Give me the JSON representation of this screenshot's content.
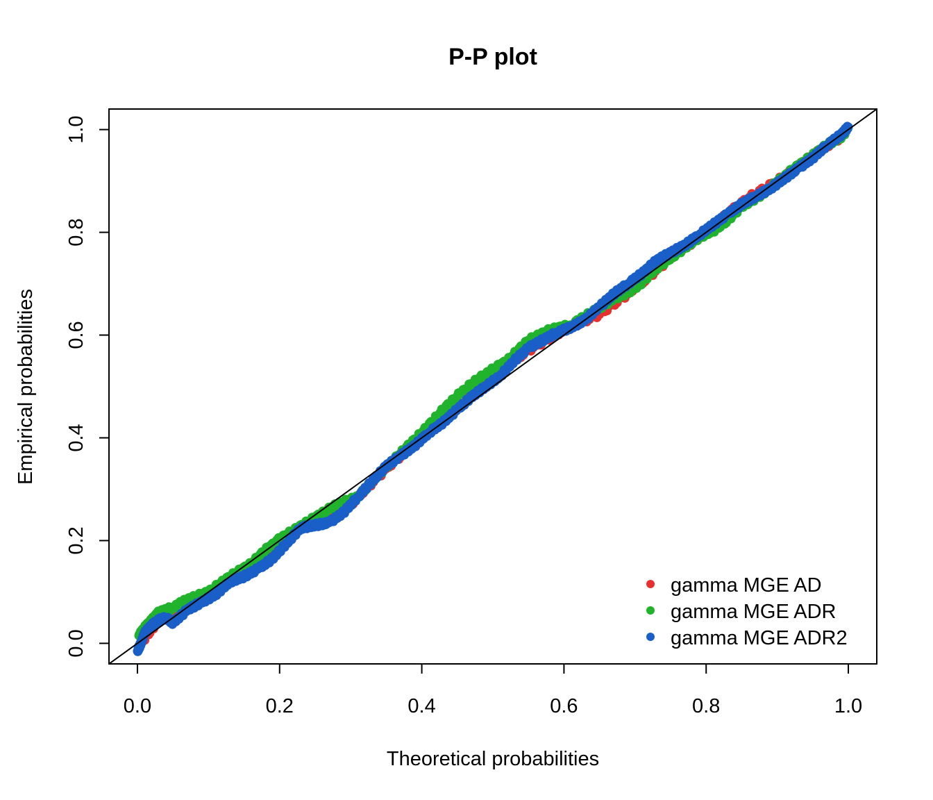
{
  "chart_data": {
    "type": "scatter",
    "title": "P-P plot",
    "xlabel": "Theoretical probabilities",
    "ylabel": "Empirical probabilities",
    "xlim": [
      -0.04,
      1.04
    ],
    "ylim": [
      -0.04,
      1.04
    ],
    "x_ticks": [
      "0.0",
      "0.2",
      "0.4",
      "0.6",
      "0.8",
      "1.0"
    ],
    "y_ticks": [
      "0.0",
      "0.2",
      "0.4",
      "0.6",
      "0.8",
      "1.0"
    ],
    "x_tick_values": [
      0,
      0.2,
      0.4,
      0.6,
      0.8,
      1.0
    ],
    "y_tick_values": [
      0,
      0.2,
      0.4,
      0.6,
      0.8,
      1.0
    ],
    "reference_line": {
      "from": [
        0,
        0
      ],
      "to": [
        1,
        1
      ],
      "color": "#000000"
    },
    "legend_placement": "bottom-right",
    "series": [
      {
        "name": "gamma MGE AD",
        "color": "#E8312F",
        "x": [
          0.005,
          0.03,
          0.06,
          0.1,
          0.15,
          0.2,
          0.25,
          0.3,
          0.35,
          0.4,
          0.45,
          0.5,
          0.55,
          0.6,
          0.65,
          0.7,
          0.75,
          0.8,
          0.85,
          0.9,
          0.95,
          0.995
        ],
        "y": [
          0.0,
          0.045,
          0.06,
          0.095,
          0.14,
          0.2,
          0.24,
          0.27,
          0.34,
          0.4,
          0.48,
          0.52,
          0.57,
          0.61,
          0.64,
          0.69,
          0.75,
          0.8,
          0.86,
          0.9,
          0.95,
          0.99
        ]
      },
      {
        "name": "gamma MGE ADR",
        "color": "#22B32D",
        "x": [
          0.002,
          0.01,
          0.02,
          0.03,
          0.05,
          0.07,
          0.1,
          0.13,
          0.16,
          0.19,
          0.22,
          0.25,
          0.28,
          0.31,
          0.34,
          0.37,
          0.4,
          0.43,
          0.46,
          0.49,
          0.52,
          0.55,
          0.58,
          0.61,
          0.64,
          0.67,
          0.7,
          0.73,
          0.76,
          0.79,
          0.82,
          0.85,
          0.88,
          0.91,
          0.94,
          0.97,
          0.995
        ],
        "y": [
          0.015,
          0.03,
          0.045,
          0.06,
          0.07,
          0.085,
          0.1,
          0.13,
          0.155,
          0.195,
          0.22,
          0.245,
          0.27,
          0.285,
          0.33,
          0.37,
          0.41,
          0.455,
          0.495,
          0.525,
          0.55,
          0.59,
          0.61,
          0.62,
          0.645,
          0.67,
          0.69,
          0.73,
          0.76,
          0.79,
          0.81,
          0.85,
          0.875,
          0.91,
          0.94,
          0.97,
          0.99
        ]
      },
      {
        "name": "gamma MGE ADR2",
        "color": "#1A5FC8",
        "x": [
          0.0,
          0.005,
          0.01,
          0.02,
          0.03,
          0.04,
          0.05,
          0.07,
          0.09,
          0.11,
          0.13,
          0.15,
          0.17,
          0.19,
          0.21,
          0.23,
          0.25,
          0.27,
          0.29,
          0.31,
          0.33,
          0.35,
          0.37,
          0.39,
          0.41,
          0.43,
          0.45,
          0.47,
          0.49,
          0.51,
          0.53,
          0.55,
          0.57,
          0.59,
          0.61,
          0.63,
          0.65,
          0.67,
          0.69,
          0.71,
          0.73,
          0.75,
          0.77,
          0.79,
          0.81,
          0.83,
          0.85,
          0.87,
          0.89,
          0.91,
          0.93,
          0.95,
          0.97,
          0.99,
          1.0
        ],
        "y": [
          -0.015,
          0.0,
          0.02,
          0.035,
          0.045,
          0.05,
          0.04,
          0.065,
          0.08,
          0.095,
          0.12,
          0.13,
          0.145,
          0.165,
          0.195,
          0.225,
          0.23,
          0.235,
          0.255,
          0.285,
          0.315,
          0.345,
          0.365,
          0.385,
          0.41,
          0.43,
          0.455,
          0.48,
          0.5,
          0.52,
          0.55,
          0.575,
          0.59,
          0.605,
          0.615,
          0.63,
          0.655,
          0.68,
          0.7,
          0.72,
          0.745,
          0.76,
          0.775,
          0.795,
          0.815,
          0.835,
          0.855,
          0.87,
          0.885,
          0.905,
          0.925,
          0.945,
          0.97,
          0.99,
          1.005
        ]
      }
    ]
  }
}
